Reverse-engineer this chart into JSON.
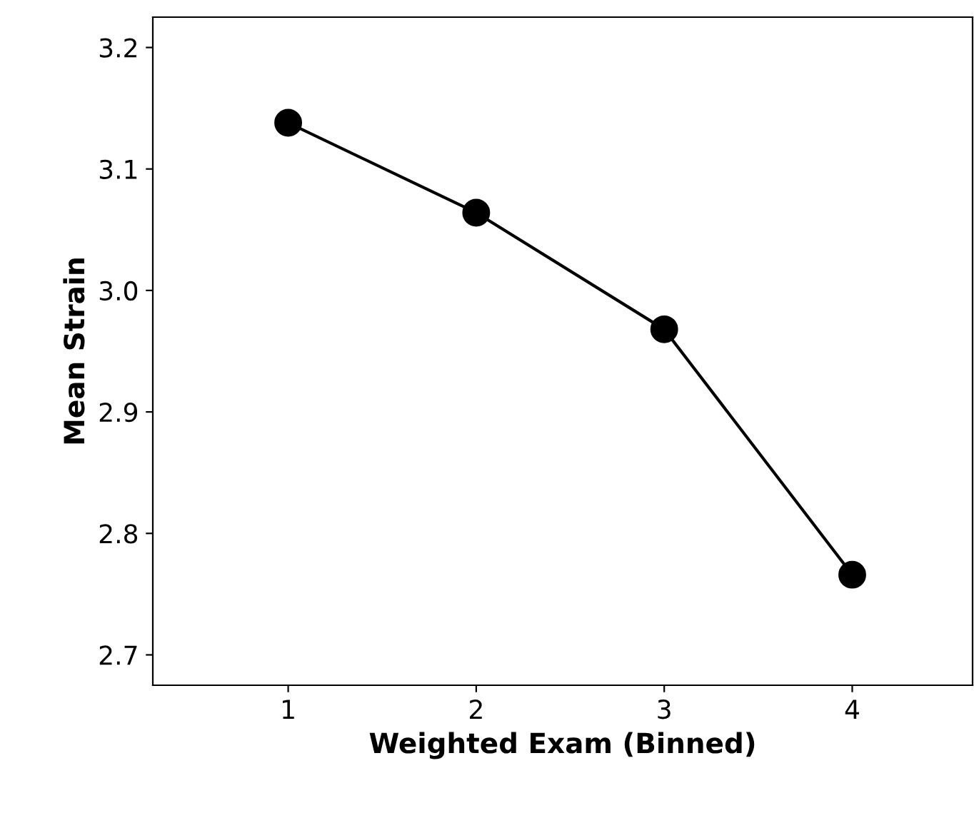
{
  "chart_data": {
    "type": "line",
    "xlabel": "Weighted Exam (Binned)",
    "ylabel": "Mean Strain",
    "x": [
      1,
      2,
      3,
      4
    ],
    "series": [
      {
        "color": "#000000",
        "values": [
          3.138,
          3.064,
          2.968,
          2.766
        ]
      }
    ],
    "xlim": [
      0.28,
      4.64
    ],
    "xticks": [
      1,
      2,
      3,
      4
    ],
    "ylim": [
      2.675,
      3.225
    ],
    "yticks": [
      2.7,
      2.8,
      2.9,
      {
        "value": 3,
        "label": "3.0"
      },
      3.1,
      3.2
    ],
    "marker": "circle",
    "line_style": "solid",
    "grid": false
  }
}
